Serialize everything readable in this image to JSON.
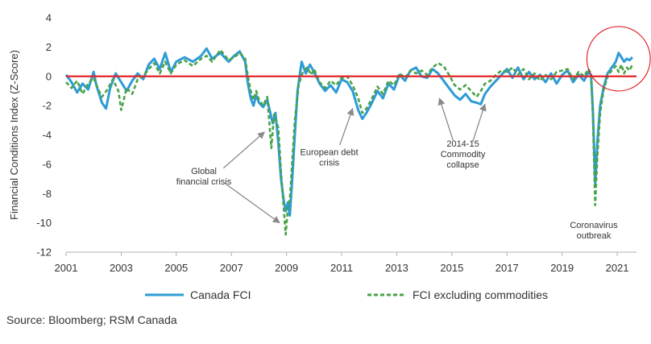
{
  "chart_data": {
    "type": "line",
    "ylabel": "Financial Conditions Index (Z-Score)",
    "xlim": [
      2001,
      2021.7
    ],
    "ylim": [
      -12,
      4
    ],
    "x_ticks": [
      "2001",
      "2003",
      "2005",
      "2007",
      "2009",
      "2011",
      "2013",
      "2015",
      "2017",
      "2019",
      "2021"
    ],
    "y_ticks": [
      "4",
      "2",
      "0",
      "-2",
      "-4",
      "-6",
      "-8",
      "-10",
      "-12"
    ],
    "zero_line_color": "#e0262b",
    "series": [
      {
        "name": "Canada FCI",
        "color": "#2e9bd6",
        "style": "solid",
        "points": [
          [
            2001.0,
            0.1
          ],
          [
            2001.2,
            -0.4
          ],
          [
            2001.4,
            -1.1
          ],
          [
            2001.6,
            -0.5
          ],
          [
            2001.8,
            -0.9
          ],
          [
            2002.0,
            0.3
          ],
          [
            2002.1,
            -0.6
          ],
          [
            2002.3,
            -1.8
          ],
          [
            2002.45,
            -2.2
          ],
          [
            2002.6,
            -0.8
          ],
          [
            2002.8,
            0.2
          ],
          [
            2003.0,
            -0.4
          ],
          [
            2003.2,
            -1.0
          ],
          [
            2003.4,
            -0.3
          ],
          [
            2003.6,
            0.2
          ],
          [
            2003.8,
            -0.2
          ],
          [
            2004.0,
            0.8
          ],
          [
            2004.2,
            1.2
          ],
          [
            2004.4,
            0.5
          ],
          [
            2004.6,
            1.6
          ],
          [
            2004.8,
            0.3
          ],
          [
            2005.0,
            1.0
          ],
          [
            2005.3,
            1.3
          ],
          [
            2005.6,
            1.0
          ],
          [
            2005.9,
            1.4
          ],
          [
            2006.1,
            1.9
          ],
          [
            2006.3,
            1.2
          ],
          [
            2006.6,
            1.6
          ],
          [
            2006.9,
            1.0
          ],
          [
            2007.1,
            1.4
          ],
          [
            2007.3,
            1.7
          ],
          [
            2007.5,
            1.0
          ],
          [
            2007.6,
            -0.5
          ],
          [
            2007.7,
            -1.5
          ],
          [
            2007.8,
            -2.0
          ],
          [
            2007.9,
            -1.3
          ],
          [
            2008.0,
            -1.8
          ],
          [
            2008.15,
            -2.1
          ],
          [
            2008.3,
            -1.6
          ],
          [
            2008.5,
            -3.2
          ],
          [
            2008.6,
            -2.5
          ],
          [
            2008.7,
            -4.5
          ],
          [
            2008.8,
            -7.0
          ],
          [
            2008.9,
            -8.5
          ],
          [
            2008.97,
            -9.2
          ],
          [
            2009.05,
            -8.6
          ],
          [
            2009.12,
            -9.5
          ],
          [
            2009.2,
            -7.2
          ],
          [
            2009.3,
            -4.0
          ],
          [
            2009.4,
            -1.0
          ],
          [
            2009.55,
            1.0
          ],
          [
            2009.7,
            0.2
          ],
          [
            2009.85,
            0.8
          ],
          [
            2010.0,
            0.3
          ],
          [
            2010.2,
            -0.5
          ],
          [
            2010.4,
            -1.0
          ],
          [
            2010.6,
            -0.6
          ],
          [
            2010.8,
            -1.1
          ],
          [
            2011.0,
            -0.2
          ],
          [
            2011.2,
            -0.4
          ],
          [
            2011.4,
            -1.0
          ],
          [
            2011.6,
            -2.3
          ],
          [
            2011.75,
            -2.9
          ],
          [
            2011.9,
            -2.5
          ],
          [
            2012.1,
            -1.8
          ],
          [
            2012.3,
            -1.0
          ],
          [
            2012.5,
            -1.5
          ],
          [
            2012.7,
            -0.5
          ],
          [
            2012.9,
            -0.9
          ],
          [
            2013.1,
            0.1
          ],
          [
            2013.3,
            -0.3
          ],
          [
            2013.5,
            0.4
          ],
          [
            2013.7,
            0.6
          ],
          [
            2013.9,
            0.0
          ],
          [
            2014.1,
            -0.1
          ],
          [
            2014.3,
            0.5
          ],
          [
            2014.5,
            0.2
          ],
          [
            2014.7,
            -0.3
          ],
          [
            2014.9,
            -0.8
          ],
          [
            2015.1,
            -1.3
          ],
          [
            2015.3,
            -1.6
          ],
          [
            2015.5,
            -1.2
          ],
          [
            2015.7,
            -1.7
          ],
          [
            2015.9,
            -1.8
          ],
          [
            2016.05,
            -1.9
          ],
          [
            2016.2,
            -1.2
          ],
          [
            2016.4,
            -0.7
          ],
          [
            2016.6,
            -0.3
          ],
          [
            2016.8,
            0.1
          ],
          [
            2017.0,
            0.5
          ],
          [
            2017.2,
            -0.1
          ],
          [
            2017.4,
            0.6
          ],
          [
            2017.6,
            -0.2
          ],
          [
            2017.8,
            0.3
          ],
          [
            2018.0,
            -0.2
          ],
          [
            2018.2,
            0.1
          ],
          [
            2018.4,
            -0.4
          ],
          [
            2018.6,
            0.2
          ],
          [
            2018.8,
            -0.5
          ],
          [
            2019.0,
            0.1
          ],
          [
            2019.2,
            0.4
          ],
          [
            2019.4,
            -0.4
          ],
          [
            2019.6,
            0.1
          ],
          [
            2019.8,
            -0.3
          ],
          [
            2019.95,
            0.3
          ],
          [
            2020.05,
            0.1
          ],
          [
            2020.12,
            -2.5
          ],
          [
            2020.2,
            -7.3
          ],
          [
            2020.28,
            -4.5
          ],
          [
            2020.38,
            -2.0
          ],
          [
            2020.5,
            -0.8
          ],
          [
            2020.65,
            0.2
          ],
          [
            2020.8,
            0.6
          ],
          [
            2020.95,
            1.0
          ],
          [
            2021.05,
            1.6
          ],
          [
            2021.15,
            1.3
          ],
          [
            2021.25,
            1.0
          ],
          [
            2021.35,
            1.2
          ],
          [
            2021.45,
            1.1
          ],
          [
            2021.55,
            1.3
          ]
        ]
      },
      {
        "name": "FCI excluding commodities",
        "color": "#49a348",
        "style": "dashed",
        "points": [
          [
            2001.0,
            -0.4
          ],
          [
            2001.2,
            -0.8
          ],
          [
            2001.4,
            -0.3
          ],
          [
            2001.6,
            -1.2
          ],
          [
            2001.8,
            -0.5
          ],
          [
            2002.0,
            -0.1
          ],
          [
            2002.15,
            -0.8
          ],
          [
            2002.3,
            -1.4
          ],
          [
            2002.5,
            -0.9
          ],
          [
            2002.7,
            -0.2
          ],
          [
            2002.9,
            -1.0
          ],
          [
            2003.0,
            -2.3
          ],
          [
            2003.2,
            -0.8
          ],
          [
            2003.4,
            -1.2
          ],
          [
            2003.6,
            -0.2
          ],
          [
            2003.8,
            0.0
          ],
          [
            2004.0,
            0.5
          ],
          [
            2004.2,
            0.9
          ],
          [
            2004.4,
            0.2
          ],
          [
            2004.6,
            1.0
          ],
          [
            2004.8,
            0.2
          ],
          [
            2005.0,
            0.8
          ],
          [
            2005.3,
            1.1
          ],
          [
            2005.6,
            0.7
          ],
          [
            2005.9,
            1.2
          ],
          [
            2006.1,
            1.4
          ],
          [
            2006.3,
            1.0
          ],
          [
            2006.6,
            1.8
          ],
          [
            2006.9,
            1.1
          ],
          [
            2007.1,
            1.3
          ],
          [
            2007.3,
            1.6
          ],
          [
            2007.5,
            1.2
          ],
          [
            2007.6,
            0.0
          ],
          [
            2007.7,
            -1.0
          ],
          [
            2007.8,
            -1.6
          ],
          [
            2007.9,
            -1.0
          ],
          [
            2008.0,
            -1.6
          ],
          [
            2008.15,
            -2.0
          ],
          [
            2008.3,
            -1.4
          ],
          [
            2008.45,
            -4.9
          ],
          [
            2008.55,
            -2.6
          ],
          [
            2008.7,
            -3.5
          ],
          [
            2008.8,
            -6.5
          ],
          [
            2008.9,
            -9.0
          ],
          [
            2008.97,
            -10.8
          ],
          [
            2009.05,
            -9.0
          ],
          [
            2009.12,
            -8.4
          ],
          [
            2009.2,
            -6.0
          ],
          [
            2009.3,
            -3.0
          ],
          [
            2009.45,
            -0.5
          ],
          [
            2009.6,
            0.3
          ],
          [
            2009.75,
            0.6
          ],
          [
            2009.9,
            0.1
          ],
          [
            2010.0,
            0.5
          ],
          [
            2010.2,
            -0.4
          ],
          [
            2010.4,
            -0.8
          ],
          [
            2010.6,
            -0.3
          ],
          [
            2010.8,
            -0.6
          ],
          [
            2011.0,
            -0.1
          ],
          [
            2011.2,
            0.0
          ],
          [
            2011.4,
            -0.6
          ],
          [
            2011.6,
            -1.5
          ],
          [
            2011.75,
            -2.5
          ],
          [
            2011.9,
            -2.2
          ],
          [
            2012.1,
            -1.5
          ],
          [
            2012.3,
            -0.7
          ],
          [
            2012.5,
            -1.2
          ],
          [
            2012.7,
            -0.3
          ],
          [
            2012.9,
            -0.6
          ],
          [
            2013.1,
            0.2
          ],
          [
            2013.3,
            -0.1
          ],
          [
            2013.5,
            0.4
          ],
          [
            2013.7,
            0.2
          ],
          [
            2013.9,
            0.4
          ],
          [
            2014.1,
            0.1
          ],
          [
            2014.3,
            0.6
          ],
          [
            2014.5,
            0.9
          ],
          [
            2014.7,
            0.7
          ],
          [
            2014.9,
            0.1
          ],
          [
            2015.1,
            -0.6
          ],
          [
            2015.3,
            -0.9
          ],
          [
            2015.5,
            -0.6
          ],
          [
            2015.7,
            -1.0
          ],
          [
            2015.9,
            -1.4
          ],
          [
            2016.05,
            -1.0
          ],
          [
            2016.2,
            -0.5
          ],
          [
            2016.4,
            -0.3
          ],
          [
            2016.6,
            0.1
          ],
          [
            2016.8,
            0.4
          ],
          [
            2017.0,
            0.3
          ],
          [
            2017.2,
            0.6
          ],
          [
            2017.4,
            0.1
          ],
          [
            2017.6,
            0.5
          ],
          [
            2017.8,
            -0.2
          ],
          [
            2018.0,
            0.2
          ],
          [
            2018.2,
            -0.3
          ],
          [
            2018.4,
            0.1
          ],
          [
            2018.6,
            -0.2
          ],
          [
            2018.8,
            0.3
          ],
          [
            2019.0,
            0.4
          ],
          [
            2019.2,
            0.5
          ],
          [
            2019.4,
            -0.2
          ],
          [
            2019.6,
            0.3
          ],
          [
            2019.8,
            0.0
          ],
          [
            2019.95,
            0.5
          ],
          [
            2020.05,
            0.2
          ],
          [
            2020.12,
            -3.0
          ],
          [
            2020.2,
            -8.8
          ],
          [
            2020.28,
            -5.5
          ],
          [
            2020.38,
            -2.5
          ],
          [
            2020.5,
            -1.0
          ],
          [
            2020.65,
            0.0
          ],
          [
            2020.8,
            0.4
          ],
          [
            2020.95,
            0.7
          ],
          [
            2021.05,
            0.3
          ],
          [
            2021.15,
            0.8
          ],
          [
            2021.25,
            0.2
          ],
          [
            2021.35,
            0.6
          ],
          [
            2021.45,
            0.4
          ],
          [
            2021.55,
            0.8
          ]
        ]
      }
    ],
    "annotations": [
      {
        "lines": [
          "Global",
          "financial crisis"
        ],
        "x": 2006.0,
        "y": -6.8,
        "arrows_to": [
          [
            2008.2,
            -3.8
          ],
          [
            2008.75,
            -10.0
          ]
        ]
      },
      {
        "lines": [
          "European debt",
          "crisis"
        ],
        "x": 2010.55,
        "y": -5.5,
        "arrows_to": [
          [
            2011.4,
            -2.2
          ]
        ]
      },
      {
        "lines": [
          "2014-15",
          "Commodity",
          "collapse"
        ],
        "x": 2015.4,
        "y": -5.3,
        "arrows_to": [
          [
            2014.55,
            -1.5
          ],
          [
            2016.2,
            -1.9
          ]
        ]
      },
      {
        "lines": [
          "Coronavirus",
          "outbreak"
        ],
        "x": 2020.15,
        "y": -10.5,
        "arrows_to": []
      }
    ],
    "highlight": {
      "shape": "ellipse",
      "color": "#e0262b",
      "cx": 2021.05,
      "cy": 1.2,
      "rx": 1.15,
      "ry": 2.2
    },
    "legend": {
      "placement": "bottom"
    }
  },
  "source": "Source: Bloomberg; RSM Canada"
}
